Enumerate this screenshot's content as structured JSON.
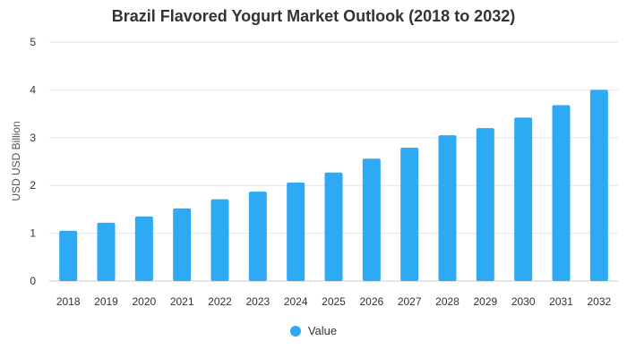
{
  "chart_data": {
    "type": "bar",
    "title": "Brazil Flavored Yogurt Market Outlook (2018 to 2032)",
    "xlabel": "",
    "ylabel": "USD USD Billion",
    "categories": [
      "2018",
      "2019",
      "2020",
      "2021",
      "2022",
      "2023",
      "2024",
      "2025",
      "2026",
      "2027",
      "2028",
      "2029",
      "2030",
      "2031",
      "2032"
    ],
    "series": [
      {
        "name": "Value",
        "values": [
          1.05,
          1.22,
          1.35,
          1.52,
          1.71,
          1.87,
          2.06,
          2.27,
          2.56,
          2.79,
          3.05,
          3.2,
          3.42,
          3.68,
          4.0
        ],
        "color": "#2eaaf5"
      }
    ],
    "ylim": [
      0,
      5
    ],
    "yticks": [
      "0",
      "1",
      "2",
      "3",
      "4",
      "5"
    ],
    "grid": true,
    "legend_position": "bottom"
  }
}
